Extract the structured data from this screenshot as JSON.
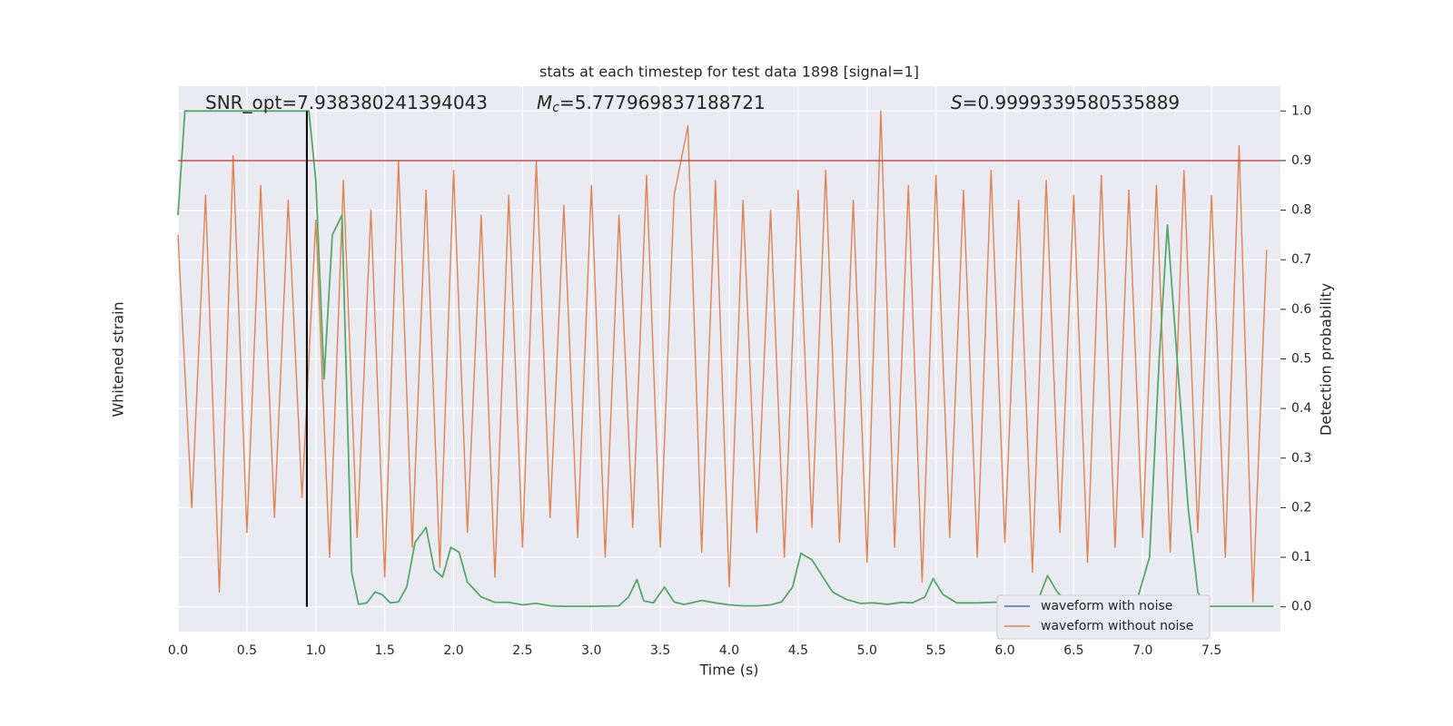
{
  "chart_data": {
    "type": "line",
    "title": "stats at each timestep for test data 1898 [signal=1]",
    "xlabel": "Time (s)",
    "ylabel": "Whitened strain",
    "y2label": "Detection probability",
    "annotations": [
      {
        "text": "SNR_opt=7.938380241394043"
      },
      {
        "symbol": "M",
        "subscript": "c",
        "text": "=5.777969837188721"
      },
      {
        "symbol": "S",
        "text": "=0.9999339580535889"
      }
    ],
    "xlim": [
      0,
      8
    ],
    "xticks": [
      {
        "value": 0,
        "label": "0.0"
      },
      0.5,
      {
        "value": 1,
        "label": "1.0"
      },
      1.5,
      {
        "value": 2,
        "label": "2.0"
      },
      2.5,
      {
        "value": 3,
        "label": "3.0"
      },
      3.5,
      {
        "value": 4,
        "label": "4.0"
      },
      4.5,
      {
        "value": 5,
        "label": "5.0"
      },
      5.5,
      {
        "value": 6,
        "label": "6.0"
      },
      6.5,
      {
        "value": 7,
        "label": "7.0"
      },
      7.5
    ],
    "ylim": [
      -0.05,
      1.05
    ],
    "y2lim": [
      -0.05,
      1.05
    ],
    "y2ticks": [
      {
        "value": 0,
        "label": "0.0"
      },
      0.1,
      0.2,
      0.3,
      0.4,
      0.5,
      0.6,
      0.7,
      0.8,
      0.9,
      {
        "value": 1,
        "label": "1.0"
      }
    ],
    "grid": true,
    "legend": "lower right",
    "hlines": [
      {
        "value": 0.9,
        "color": "#c44e52",
        "axis": "y2"
      }
    ],
    "vlines": [
      {
        "value": 0.935,
        "color": "#000000"
      }
    ],
    "series": [
      {
        "name": "waveform with noise",
        "color": "#4c72b0"
      },
      {
        "name": "waveform without noise",
        "color": "#dd8452",
        "x": [
          0,
          0.1,
          0.2,
          0.3,
          0.4,
          0.5,
          0.6,
          0.7,
          0.8,
          0.9,
          1.0,
          1.1,
          1.2,
          1.3,
          1.4,
          1.5,
          1.6,
          1.7,
          1.8,
          1.9,
          2.0,
          2.1,
          2.2,
          2.3,
          2.4,
          2.5,
          2.6,
          2.7,
          2.8,
          2.9,
          3.0,
          3.1,
          3.2,
          3.3,
          3.4,
          3.5,
          3.6,
          3.7,
          3.8,
          3.9,
          4.0,
          4.1,
          4.2,
          4.3,
          4.4,
          4.5,
          4.6,
          4.7,
          4.8,
          4.9,
          5.0,
          5.1,
          5.2,
          5.3,
          5.4,
          5.5,
          5.6,
          5.7,
          5.8,
          5.9,
          6.0,
          6.1,
          6.2,
          6.3,
          6.4,
          6.5,
          6.6,
          6.7,
          6.8,
          6.9,
          7.0,
          7.1,
          7.2,
          7.3,
          7.4,
          7.5,
          7.6,
          7.7,
          7.8,
          7.9
        ],
        "values": [
          0.75,
          0.2,
          0.83,
          0.03,
          0.91,
          0.15,
          0.85,
          0.18,
          0.82,
          0.22,
          0.78,
          0.1,
          0.86,
          0.14,
          0.8,
          0.06,
          0.9,
          0.12,
          0.84,
          0.08,
          0.88,
          0.15,
          0.79,
          0.06,
          0.83,
          0.12,
          0.9,
          0.18,
          0.81,
          0.14,
          0.85,
          0.1,
          0.79,
          0.16,
          0.87,
          0.12,
          0.83,
          0.97,
          0.11,
          0.86,
          0.04,
          0.82,
          0.15,
          0.8,
          0.1,
          0.84,
          0.16,
          0.88,
          0.13,
          0.82,
          0.09,
          1.0,
          0.12,
          0.85,
          0.05,
          0.87,
          0.14,
          0.84,
          0.1,
          0.88,
          0.13,
          0.82,
          0.07,
          0.86,
          0.15,
          0.83,
          0.09,
          0.87,
          0.12,
          0.84,
          0.14,
          0.85,
          0.11,
          0.88,
          0.15,
          0.83,
          0.1,
          0.93,
          0.01,
          0.72
        ]
      },
      {
        "color": "#55a868",
        "axis": "y2",
        "x": [
          0,
          0.05,
          0.1,
          0.2,
          0.3,
          0.4,
          0.5,
          0.6,
          0.7,
          0.8,
          0.9,
          0.95,
          1.0,
          1.06,
          1.12,
          1.19,
          1.26,
          1.31,
          1.37,
          1.43,
          1.48,
          1.54,
          1.6,
          1.66,
          1.72,
          1.8,
          1.86,
          1.92,
          1.98,
          2.04,
          2.1,
          2.2,
          2.3,
          2.4,
          2.5,
          2.6,
          2.7,
          2.8,
          3.0,
          3.2,
          3.27,
          3.33,
          3.38,
          3.45,
          3.53,
          3.6,
          3.67,
          3.73,
          3.8,
          3.9,
          4.0,
          4.1,
          4.2,
          4.3,
          4.38,
          4.46,
          4.52,
          4.6,
          4.68,
          4.75,
          4.85,
          4.95,
          5.05,
          5.15,
          5.25,
          5.33,
          5.42,
          5.48,
          5.55,
          5.65,
          5.8,
          6.0,
          6.15,
          6.25,
          6.31,
          6.38,
          6.45,
          6.6,
          6.8,
          6.95,
          7.05,
          7.12,
          7.18,
          7.25,
          7.33,
          7.4,
          7.46,
          7.6,
          7.8,
          7.95
        ],
        "values": [
          0.79,
          1.0,
          1.0,
          1.0,
          1.0,
          1.0,
          1.0,
          1.0,
          1.0,
          1.0,
          1.0,
          1.0,
          0.86,
          0.46,
          0.75,
          0.79,
          0.07,
          0.005,
          0.008,
          0.03,
          0.025,
          0.008,
          0.01,
          0.04,
          0.13,
          0.16,
          0.075,
          0.06,
          0.12,
          0.11,
          0.05,
          0.02,
          0.009,
          0.009,
          0.004,
          0.007,
          0.002,
          0.001,
          0.001,
          0.002,
          0.02,
          0.055,
          0.012,
          0.008,
          0.04,
          0.01,
          0.005,
          0.008,
          0.013,
          0.008,
          0.004,
          0.002,
          0.002,
          0.004,
          0.01,
          0.04,
          0.108,
          0.095,
          0.06,
          0.03,
          0.015,
          0.007,
          0.008,
          0.005,
          0.009,
          0.008,
          0.02,
          0.057,
          0.025,
          0.008,
          0.008,
          0.01,
          0.01,
          0.02,
          0.063,
          0.03,
          0.01,
          0.005,
          0.004,
          0.005,
          0.1,
          0.5,
          0.77,
          0.5,
          0.2,
          0.03,
          0.001,
          0.001,
          0.001,
          0.001
        ]
      }
    ]
  }
}
